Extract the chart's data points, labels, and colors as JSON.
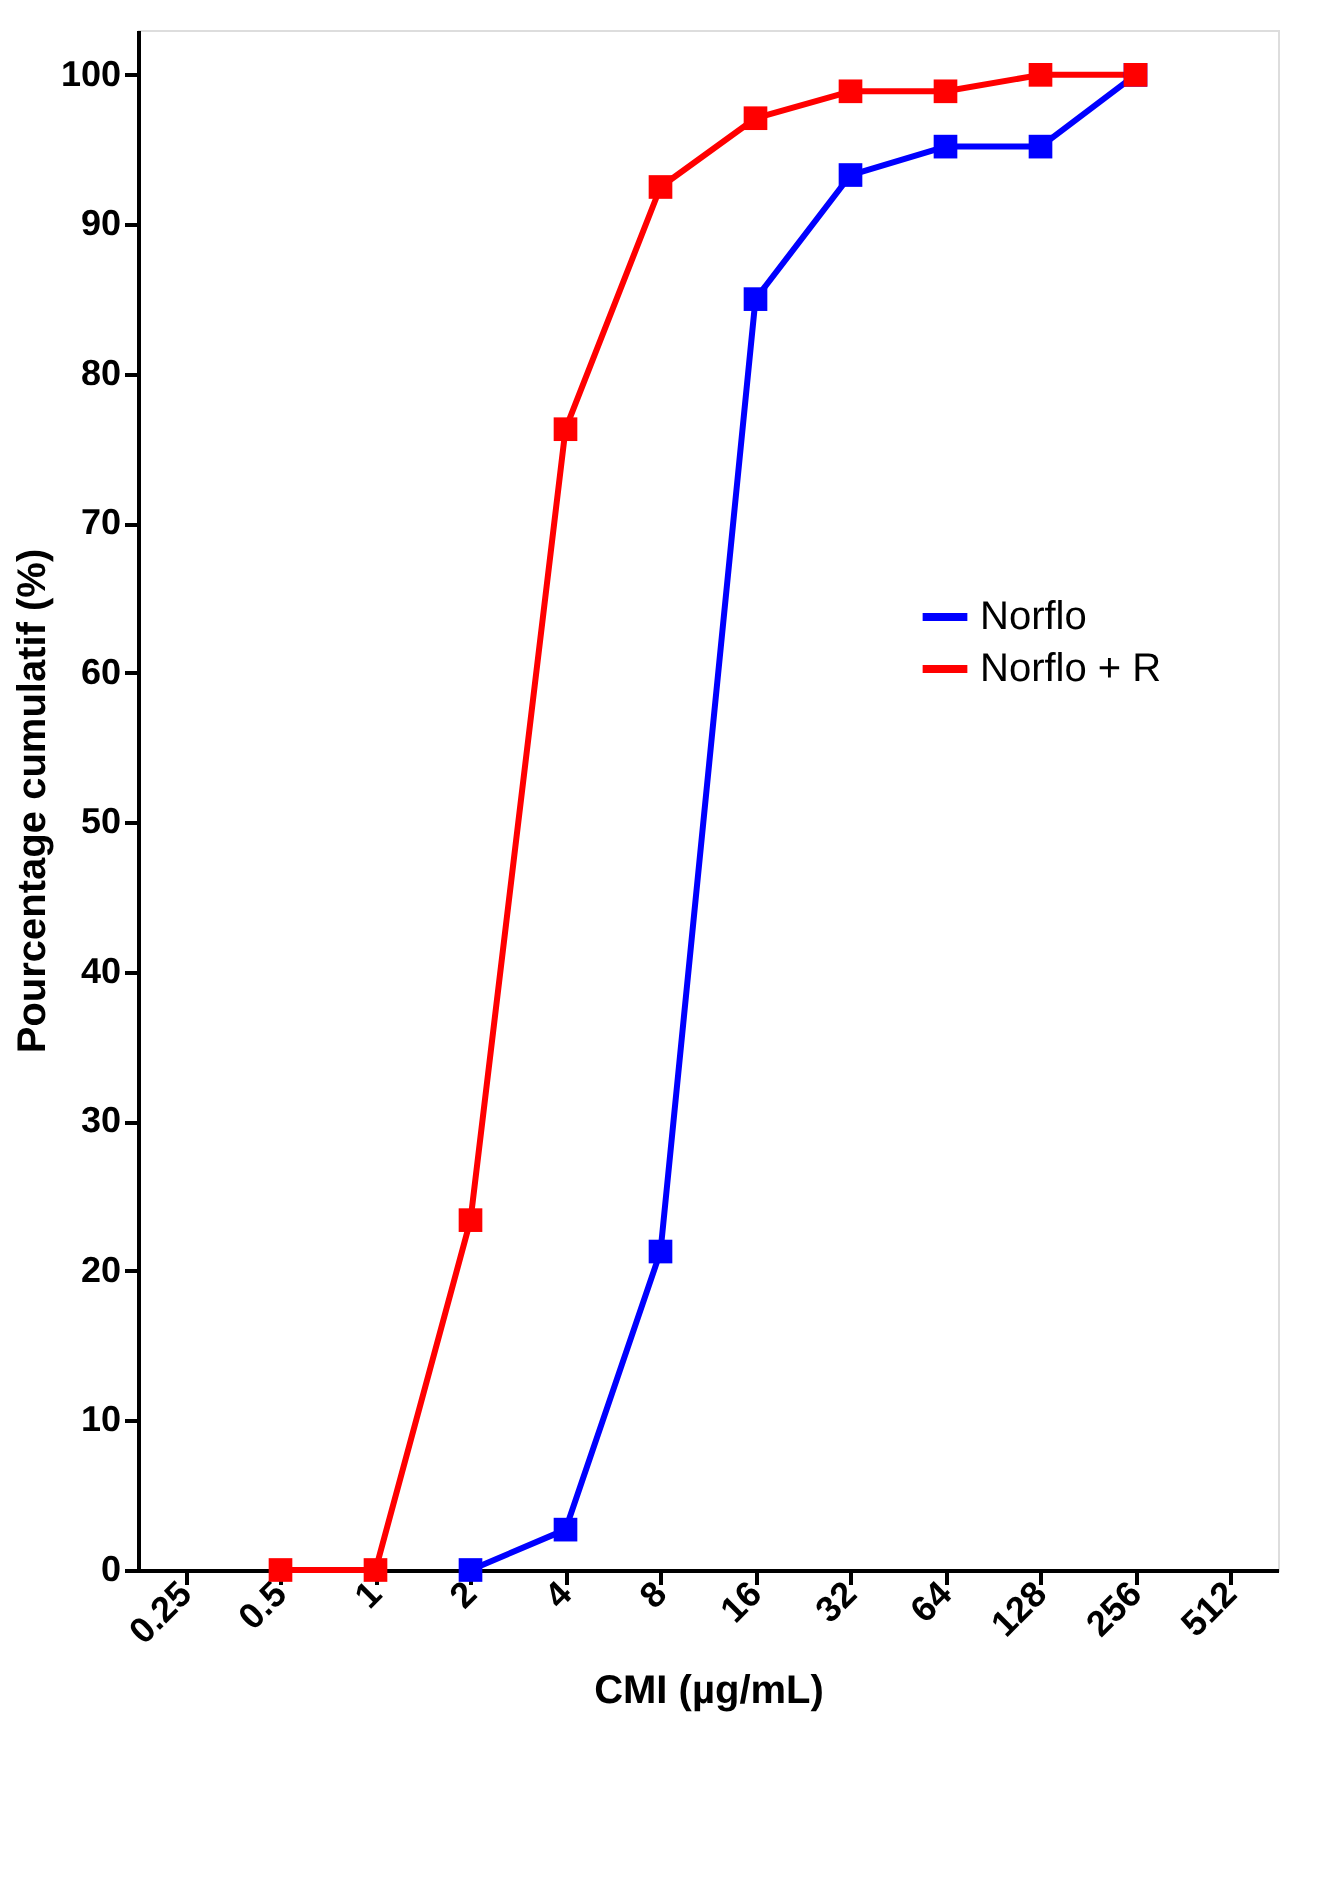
{
  "chart_data": {
    "type": "line",
    "xlabel": "CMI (µg/mL)",
    "ylabel": "Pourcentage cumulatif (%)",
    "categories": [
      "0.25",
      "0.5",
      "1",
      "2",
      "4",
      "8",
      "16",
      "32",
      "64",
      "128",
      "256",
      "512"
    ],
    "series": [
      {
        "name": "Norflo",
        "color": "#0000ff",
        "values": [
          null,
          null,
          null,
          0,
          2.7,
          21.3,
          85,
          93.3,
          95.2,
          95.2,
          100,
          null
        ]
      },
      {
        "name": "Norflo + R",
        "color": "#ff0000",
        "values": [
          null,
          0,
          0,
          23.4,
          76.3,
          92.5,
          97.1,
          98.9,
          98.9,
          100,
          100,
          null
        ]
      }
    ],
    "ylim": [
      0,
      103
    ],
    "yticks": [
      0,
      10,
      20,
      30,
      40,
      50,
      60,
      70,
      80,
      90,
      100
    ],
    "grid": false,
    "legend": "right",
    "marker": "square",
    "line_style": "solid"
  }
}
